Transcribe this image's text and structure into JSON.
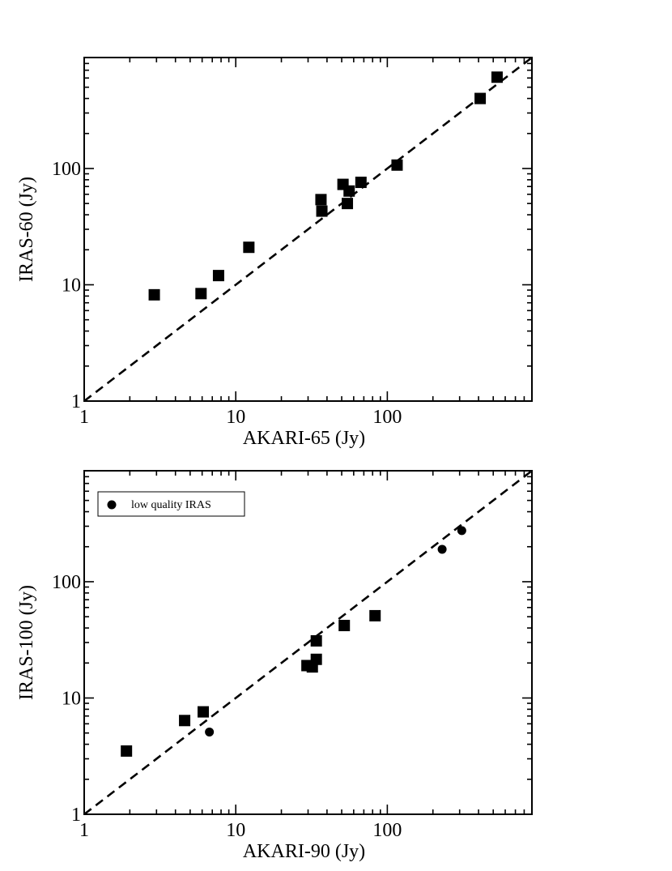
{
  "chart_data": [
    {
      "type": "scatter",
      "title": "",
      "xlabel": "AKARI-65 (Jy)",
      "ylabel": "IRAS-60 (Jy)",
      "xscale": "log",
      "yscale": "log",
      "xlim": [
        1,
        900
      ],
      "ylim": [
        1,
        900
      ],
      "xticks": [
        1,
        10,
        100
      ],
      "yticks": [
        1,
        10,
        100
      ],
      "xtick_labels": [
        "1",
        "10",
        "100"
      ],
      "ytick_labels": [
        "1",
        "10",
        "100"
      ],
      "reference_line": "y = x (dashed)",
      "series": [
        {
          "marker": "square",
          "points": [
            [
              2.9,
              8.2
            ],
            [
              5.9,
              8.4
            ],
            [
              7.7,
              12
            ],
            [
              12.2,
              21
            ],
            [
              36.5,
              54
            ],
            [
              37,
              43
            ],
            [
              51,
              73
            ],
            [
              54.5,
              50
            ],
            [
              56,
              64
            ],
            [
              67,
              76
            ],
            [
              116,
              107
            ],
            [
              410,
              400
            ],
            [
              530,
              610
            ]
          ]
        }
      ]
    },
    {
      "type": "scatter",
      "title": "",
      "xlabel": "AKARI-90 (Jy)",
      "ylabel": "IRAS-100 (Jy)",
      "xscale": "log",
      "yscale": "log",
      "xlim": [
        1,
        900
      ],
      "ylim": [
        1,
        900
      ],
      "xticks": [
        1,
        10,
        100
      ],
      "yticks": [
        1,
        10,
        100
      ],
      "xtick_labels": [
        "1",
        "10",
        "100"
      ],
      "ytick_labels": [
        "1",
        "10",
        "100"
      ],
      "reference_line": "y = x (dashed)",
      "legend": {
        "placement": "top-left",
        "entries": [
          "low quality IRAS"
        ]
      },
      "series": [
        {
          "marker": "square",
          "points": [
            [
              1.9,
              3.5
            ],
            [
              4.6,
              6.4
            ],
            [
              6.1,
              7.6
            ],
            [
              29.5,
              19
            ],
            [
              32,
              18.5
            ],
            [
              34,
              21.5
            ],
            [
              34,
              31
            ],
            [
              52,
              42
            ],
            [
              83,
              51
            ]
          ]
        },
        {
          "name": "low quality IRAS",
          "marker": "circle",
          "points": [
            [
              6.7,
              5.1
            ],
            [
              230,
              190
            ],
            [
              310,
              275
            ]
          ]
        }
      ]
    }
  ]
}
